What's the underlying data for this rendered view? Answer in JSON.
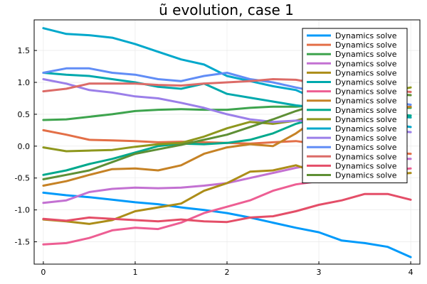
{
  "chart_data": {
    "type": "line",
    "title": "ũ evolution, case 1",
    "xlabel": "",
    "ylabel": "",
    "xlim": [
      -0.1,
      4.1
    ],
    "ylim": [
      -1.85,
      1.98
    ],
    "xticks": [
      0,
      1,
      2,
      3,
      4
    ],
    "yticks": [
      -1.5,
      -1.0,
      -0.5,
      0.0,
      0.5,
      1.0,
      1.5
    ],
    "xtick_labels": [
      "0",
      "1",
      "2",
      "3",
      "4"
    ],
    "ytick_labels": [
      "-1.5",
      "-1.0",
      "-0.5",
      "0.0",
      "0.5",
      "1.0",
      "1.5"
    ],
    "grid": true,
    "legend_position": "top-right",
    "series": [
      {
        "name": "Dynamics solve",
        "color": "#009AFA",
        "x": [
          0,
          0.25,
          0.5,
          0.75,
          1,
          1.25,
          1.5,
          1.75,
          2,
          2.25,
          2.5,
          2.75,
          3,
          3.25,
          3.5,
          3.75,
          4
        ],
        "y": [
          -0.73,
          -0.77,
          -0.8,
          -0.84,
          -0.88,
          -0.91,
          -0.96,
          -1.0,
          -1.05,
          -1.12,
          -1.2,
          -1.28,
          -1.35,
          -1.48,
          -1.52,
          -1.58,
          -1.74
        ]
      },
      {
        "name": "Dynamics solve",
        "color": "#E36F47",
        "x": [
          0,
          0.25,
          0.5,
          0.75,
          1,
          1.25,
          1.5,
          1.75,
          2,
          2.25,
          2.5,
          2.75,
          3,
          3.25,
          3.5,
          3.75,
          4
        ],
        "y": [
          0.25,
          0.18,
          0.1,
          0.09,
          0.08,
          0.06,
          0.07,
          0.06,
          0.05,
          0.04,
          0.06,
          0.08,
          0.03,
          -0.05,
          -0.08,
          -0.1,
          -0.12
        ]
      },
      {
        "name": "Dynamics solve",
        "color": "#3EA44E",
        "x": [
          0,
          0.25,
          0.5,
          0.75,
          1,
          1.25,
          1.5,
          1.75,
          2,
          2.25,
          2.5,
          2.75,
          3,
          3.25,
          3.5,
          3.75,
          4
        ],
        "y": [
          0.41,
          0.42,
          0.46,
          0.5,
          0.55,
          0.57,
          0.58,
          0.57,
          0.57,
          0.6,
          0.62,
          0.62,
          0.64,
          0.62,
          0.6,
          0.6,
          0.6
        ]
      },
      {
        "name": "Dynamics solve",
        "color": "#C371D2",
        "x": [
          0,
          0.25,
          0.5,
          0.75,
          1,
          1.25,
          1.5,
          1.75,
          2,
          2.25,
          2.5,
          2.75,
          3,
          3.25,
          3.5,
          3.75,
          4
        ],
        "y": [
          -0.89,
          -0.85,
          -0.72,
          -0.67,
          -0.65,
          -0.66,
          -0.65,
          -0.62,
          -0.58,
          -0.5,
          -0.42,
          -0.34,
          -0.28,
          -0.22,
          -0.2,
          -0.2,
          -0.2
        ]
      },
      {
        "name": "Dynamics solve",
        "color": "#AC8D18",
        "x": [
          0,
          0.25,
          0.5,
          0.75,
          1,
          1.25,
          1.5,
          1.75,
          2,
          2.25,
          2.5,
          2.75,
          3,
          3.25,
          3.5,
          3.75,
          4
        ],
        "y": [
          -1.15,
          -1.18,
          -1.22,
          -1.16,
          -1.02,
          -0.96,
          -0.9,
          -0.7,
          -0.58,
          -0.4,
          -0.38,
          -0.3,
          -0.42,
          -0.45,
          -0.48,
          -0.45,
          -0.42
        ]
      },
      {
        "name": "Dynamics solve",
        "color": "#00A9AD",
        "x": [
          0,
          0.25,
          0.5,
          0.75,
          1,
          1.25,
          1.5,
          1.75,
          2,
          2.25,
          2.5,
          2.75,
          3,
          3.25,
          3.5,
          3.75,
          4
        ],
        "y": [
          1.15,
          1.12,
          1.1,
          1.05,
          1.0,
          0.93,
          0.9,
          0.98,
          0.82,
          0.76,
          0.7,
          0.64,
          0.6,
          0.55,
          0.5,
          0.47,
          0.45
        ]
      },
      {
        "name": "Dynamics solve",
        "color": "#ED5E93",
        "x": [
          0,
          0.25,
          0.5,
          0.75,
          1,
          1.25,
          1.5,
          1.75,
          2,
          2.25,
          2.5,
          2.75,
          3,
          3.25,
          3.5,
          3.75,
          4
        ],
        "y": [
          -1.54,
          -1.52,
          -1.44,
          -1.32,
          -1.28,
          -1.3,
          -1.2,
          -1.05,
          -0.95,
          -0.85,
          -0.7,
          -0.6,
          -0.55,
          -0.45,
          -0.4,
          -0.38,
          -0.35
        ]
      },
      {
        "name": "Dynamics solve",
        "color": "#C68225",
        "x": [
          0,
          0.25,
          0.5,
          0.75,
          1,
          1.25,
          1.5,
          1.75,
          2,
          2.25,
          2.5,
          2.75,
          3,
          3.25,
          3.5,
          3.75,
          4
        ],
        "y": [
          -0.62,
          -0.55,
          -0.45,
          -0.36,
          -0.35,
          -0.38,
          -0.3,
          -0.12,
          -0.02,
          0.03,
          0.0,
          0.2,
          0.45,
          0.48,
          0.5,
          0.58,
          0.62
        ]
      },
      {
        "name": "Dynamics solve",
        "color": "#00A98D",
        "x": [
          0,
          0.25,
          0.5,
          0.75,
          1,
          1.25,
          1.5,
          1.75,
          2,
          2.25,
          2.5,
          2.75,
          3,
          3.25,
          3.5,
          3.75,
          4
        ],
        "y": [
          -0.45,
          -0.38,
          -0.28,
          -0.2,
          -0.1,
          0.0,
          0.04,
          0.03,
          0.05,
          0.1,
          0.2,
          0.35,
          0.45,
          0.5,
          0.52,
          0.5,
          0.48
        ]
      },
      {
        "name": "Dynamics solve",
        "color": "#8E971D",
        "x": [
          0,
          0.25,
          0.5,
          0.75,
          1,
          1.25,
          1.5,
          1.75,
          2,
          2.25,
          2.5,
          2.75,
          3,
          3.25,
          3.5,
          3.75,
          4
        ],
        "y": [
          -0.02,
          -0.08,
          -0.07,
          -0.06,
          -0.01,
          0.03,
          0.05,
          0.15,
          0.28,
          0.38,
          0.35,
          0.4,
          0.5,
          0.6,
          0.72,
          0.85,
          0.92
        ]
      },
      {
        "name": "Dynamics solve",
        "color": "#00A8CB",
        "x": [
          0,
          0.25,
          0.5,
          0.75,
          1,
          1.25,
          1.5,
          1.75,
          2,
          2.25,
          2.5,
          2.75,
          3,
          3.25,
          3.5,
          3.75,
          4
        ],
        "y": [
          1.85,
          1.76,
          1.74,
          1.7,
          1.6,
          1.48,
          1.36,
          1.28,
          1.1,
          1.02,
          0.94,
          0.88,
          0.72,
          0.56,
          0.45,
          0.35,
          0.3
        ]
      },
      {
        "name": "Dynamics solve",
        "color": "#9B7FE9",
        "x": [
          0,
          0.25,
          0.5,
          0.75,
          1,
          1.25,
          1.5,
          1.75,
          2,
          2.25,
          2.5,
          2.75,
          3,
          3.25,
          3.5,
          3.75,
          4
        ],
        "y": [
          1.05,
          0.98,
          0.88,
          0.84,
          0.78,
          0.75,
          0.68,
          0.6,
          0.5,
          0.42,
          0.38,
          0.4,
          0.38,
          0.35,
          0.3,
          0.25,
          0.22
        ]
      },
      {
        "name": "Dynamics solve",
        "color": "#618DF6",
        "x": [
          0,
          0.25,
          0.5,
          0.75,
          1,
          1.25,
          1.5,
          1.75,
          2,
          2.25,
          2.5,
          2.75,
          3,
          3.25,
          3.5,
          3.75,
          4
        ],
        "y": [
          1.15,
          1.22,
          1.22,
          1.15,
          1.12,
          1.05,
          1.02,
          1.1,
          1.15,
          1.05,
          1.0,
          0.92,
          0.85,
          0.8,
          0.75,
          0.7,
          0.65
        ]
      },
      {
        "name": "Dynamics solve",
        "color": "#DC6B67",
        "x": [
          0,
          0.25,
          0.5,
          0.75,
          1,
          1.25,
          1.5,
          1.75,
          2,
          2.25,
          2.5,
          2.75,
          3,
          3.25,
          3.5,
          3.75,
          4
        ],
        "y": [
          0.86,
          0.9,
          0.98,
          0.98,
          0.98,
          0.96,
          0.95,
          0.98,
          1.0,
          1.02,
          1.05,
          1.04,
          0.98,
          0.95,
          0.9,
          0.88,
          0.85
        ]
      },
      {
        "name": "Dynamics solve",
        "color": "#E44E68",
        "x": [
          0,
          0.25,
          0.5,
          0.75,
          1,
          1.25,
          1.5,
          1.75,
          2,
          2.25,
          2.5,
          2.75,
          3,
          3.25,
          3.5,
          3.75,
          4
        ],
        "y": [
          -1.14,
          -1.17,
          -1.12,
          -1.14,
          -1.16,
          -1.18,
          -1.15,
          -1.18,
          -1.19,
          -1.12,
          -1.1,
          -1.02,
          -0.92,
          -0.85,
          -0.75,
          -0.75,
          -0.84
        ]
      },
      {
        "name": "Dynamics solve",
        "color": "#5E8F35",
        "x": [
          0,
          0.25,
          0.5,
          0.75,
          1,
          1.25,
          1.5,
          1.75,
          2,
          2.25,
          2.5,
          2.75,
          3,
          3.25,
          3.5,
          3.75,
          4
        ],
        "y": [
          -0.52,
          -0.45,
          -0.38,
          -0.25,
          -0.12,
          -0.05,
          0.02,
          0.1,
          0.18,
          0.3,
          0.42,
          0.55,
          0.66,
          0.72,
          0.78,
          0.82,
          0.8
        ]
      }
    ]
  }
}
